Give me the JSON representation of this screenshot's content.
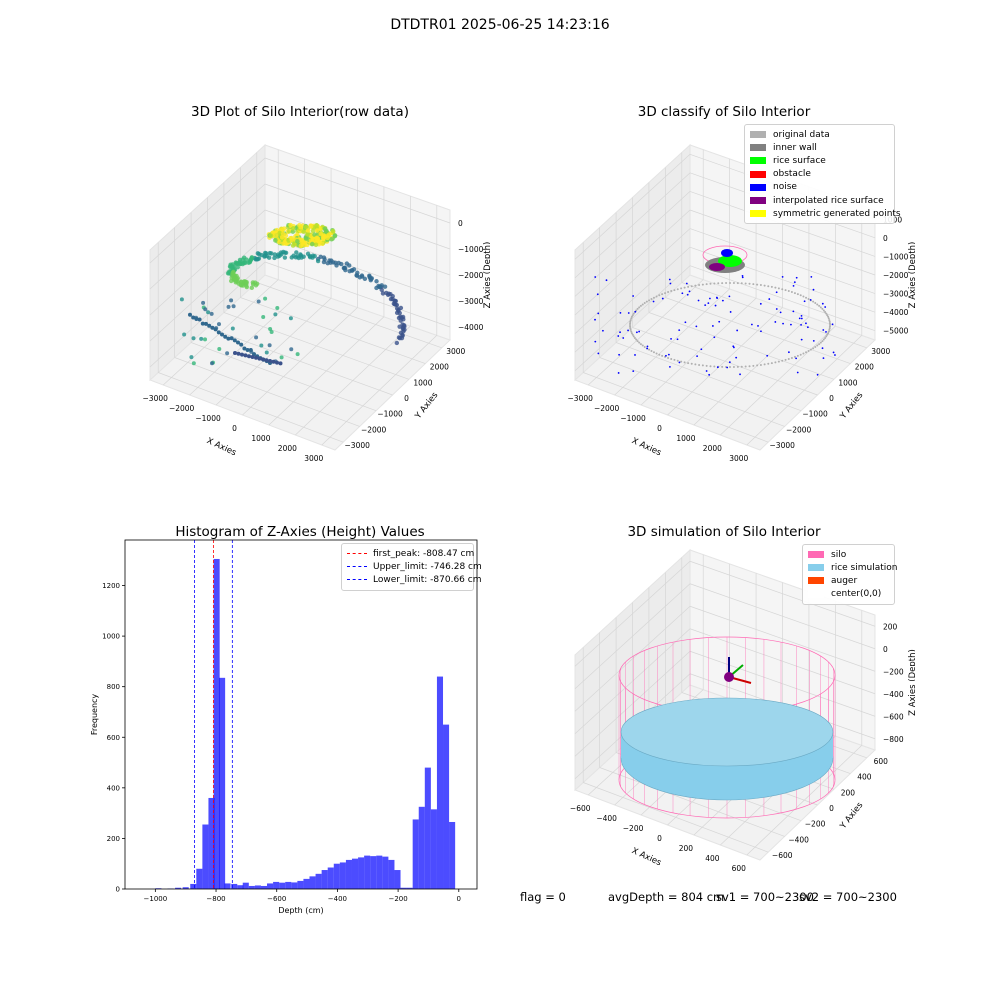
{
  "suptitle": "DTDTR01 2025-06-25 14:23:16",
  "footer": {
    "flag": "flag = 0",
    "avg_depth": "avgDepth = 804 cm",
    "sv1": "sv1 = 700~2300",
    "sv2": "sv2 = 700~2300"
  },
  "chart_data": [
    {
      "type": "scatter",
      "title": "3D Plot of Silo Interior(row data)",
      "xlabel": "X Axies",
      "ylabel": "Y Axies",
      "zlabel": "Z Axies (Depth)",
      "xticks": [
        "−3000",
        "−2000",
        "−1000",
        "0",
        "1000",
        "2000",
        "3000"
      ],
      "yticks": [
        "−3000",
        "−2000",
        "−1000",
        "0",
        "1000",
        "2000",
        "3000"
      ],
      "zticks": [
        "−4000",
        "−3000",
        "−2000",
        "−1000",
        "0"
      ],
      "colormap": "viridis"
    },
    {
      "type": "scatter",
      "title": "3D classify of Silo Interior",
      "xlabel": "X Axies",
      "ylabel": "Y Axies",
      "zlabel": "Z Axies (Depth)",
      "xticks": [
        "−3000",
        "−2000",
        "−1000",
        "0",
        "1000",
        "2000",
        "3000"
      ],
      "yticks": [
        "−3000",
        "−2000",
        "−1000",
        "0",
        "1000",
        "2000",
        "3000"
      ],
      "zticks": [
        "−5000",
        "−4000",
        "−3000",
        "−2000",
        "−1000",
        "0",
        "1000"
      ],
      "legend": [
        {
          "label": "original data",
          "color": "#b0b0b0"
        },
        {
          "label": "inner wall",
          "color": "#808080"
        },
        {
          "label": "rice surface",
          "color": "#00ff00"
        },
        {
          "label": "obstacle",
          "color": "#ff0000"
        },
        {
          "label": "noise",
          "color": "#0000ff"
        },
        {
          "label": "interpolated rice surface",
          "color": "#800080"
        },
        {
          "label": "symmetric generated points",
          "color": "#ffff00"
        }
      ]
    },
    {
      "type": "bar",
      "title": "Histogram of Z-Axies (Height) Values",
      "xlabel": "Depth (cm)",
      "ylabel": "Frequency",
      "xlim": [
        -1100,
        60
      ],
      "ylim": [
        0,
        1380
      ],
      "xticks": [
        -1000,
        -800,
        -600,
        -400,
        -200,
        0
      ],
      "xtick_labels": [
        "−1000",
        "−800",
        "−600",
        "−400",
        "−200",
        "0"
      ],
      "yticks": [
        0,
        200,
        400,
        600,
        800,
        1000,
        1200
      ],
      "bar_color": "#0000ff",
      "bins": [
        [
          -1000,
          3
        ],
        [
          -960,
          2
        ],
        [
          -935,
          5
        ],
        [
          -910,
          7
        ],
        [
          -885,
          20
        ],
        [
          -865,
          80
        ],
        [
          -845,
          255
        ],
        [
          -825,
          360
        ],
        [
          -808,
          1305
        ],
        [
          -790,
          835
        ],
        [
          -772,
          22
        ],
        [
          -750,
          20
        ],
        [
          -730,
          15
        ],
        [
          -712,
          25
        ],
        [
          -692,
          12
        ],
        [
          -672,
          14
        ],
        [
          -652,
          12
        ],
        [
          -632,
          22
        ],
        [
          -612,
          28
        ],
        [
          -592,
          25
        ],
        [
          -572,
          28
        ],
        [
          -552,
          26
        ],
        [
          -532,
          32
        ],
        [
          -512,
          40
        ],
        [
          -492,
          50
        ],
        [
          -472,
          60
        ],
        [
          -452,
          75
        ],
        [
          -432,
          85
        ],
        [
          -412,
          100
        ],
        [
          -392,
          105
        ],
        [
          -372,
          115
        ],
        [
          -352,
          120
        ],
        [
          -332,
          125
        ],
        [
          -312,
          132
        ],
        [
          -292,
          130
        ],
        [
          -272,
          132
        ],
        [
          -252,
          128
        ],
        [
          -232,
          115
        ],
        [
          -212,
          75
        ],
        [
          -192,
          5
        ],
        [
          -172,
          5
        ],
        [
          -152,
          275
        ],
        [
          -132,
          325
        ],
        [
          -112,
          480
        ],
        [
          -92,
          315
        ],
        [
          -72,
          840
        ],
        [
          -52,
          650
        ],
        [
          -32,
          265
        ]
      ],
      "bin_width": 20,
      "vlines": [
        {
          "x": -808.47,
          "label": "first_peak: -808.47 cm",
          "color": "#ff0000"
        },
        {
          "x": -746.28,
          "label": "Upper_limit: -746.28 cm",
          "color": "#0000ff"
        },
        {
          "x": -870.66,
          "label": "Lower_limit: -870.66 cm",
          "color": "#0000ff"
        }
      ],
      "legend_position": "top-right"
    },
    {
      "type": "scatter",
      "title": "3D simulation of Silo Interior",
      "xlabel": "X Axies",
      "ylabel": "Y Axies",
      "zlabel": "Z Axies (Depth)",
      "xticks": [
        "−600",
        "−400",
        "−200",
        "0",
        "200",
        "400",
        "600"
      ],
      "yticks": [
        "−600",
        "−400",
        "−200",
        "0",
        "200",
        "400",
        "600"
      ],
      "zticks": [
        "−800",
        "−600",
        "−400",
        "−200",
        "0",
        "200"
      ],
      "legend": [
        {
          "label": "silo",
          "color": "#ff69b4"
        },
        {
          "label": "rice simulation",
          "color": "#87ceeb"
        },
        {
          "label": "auger",
          "color": "#ff4500"
        },
        {
          "label": "center(0,0)",
          "color": "#ffffff"
        }
      ]
    }
  ]
}
